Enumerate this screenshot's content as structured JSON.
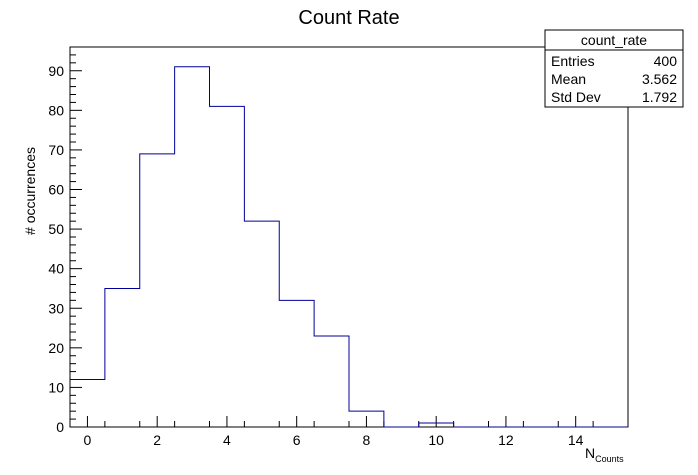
{
  "chart_data": {
    "type": "histogram",
    "title": "Count Rate",
    "xlabel": "N",
    "xlabel_subscript": "Counts",
    "ylabel": "# occurrences",
    "xlim": [
      -0.5,
      15.5
    ],
    "ylim": [
      0,
      96
    ],
    "x_ticks": [
      0,
      2,
      4,
      6,
      8,
      10,
      12,
      14
    ],
    "y_ticks": [
      0,
      10,
      20,
      30,
      40,
      50,
      60,
      70,
      80,
      90
    ],
    "bin_width": 1,
    "bins": [
      {
        "center": 0,
        "count": 12
      },
      {
        "center": 1,
        "count": 35
      },
      {
        "center": 2,
        "count": 69
      },
      {
        "center": 3,
        "count": 91
      },
      {
        "center": 4,
        "count": 81
      },
      {
        "center": 5,
        "count": 52
      },
      {
        "center": 6,
        "count": 32
      },
      {
        "center": 7,
        "count": 23
      },
      {
        "center": 8,
        "count": 4
      },
      {
        "center": 9,
        "count": 0
      },
      {
        "center": 10,
        "count": 1
      },
      {
        "center": 11,
        "count": 0
      },
      {
        "center": 12,
        "count": 0
      },
      {
        "center": 13,
        "count": 0
      },
      {
        "center": 14,
        "count": 0
      },
      {
        "center": 15,
        "count": 0
      }
    ],
    "line_color": "#000099",
    "stats_box": {
      "name": "count_rate",
      "rows": [
        {
          "label": "Entries",
          "value": "400"
        },
        {
          "label": "Mean",
          "value": "3.562"
        },
        {
          "label": "Std Dev",
          "value": "1.792"
        }
      ]
    }
  }
}
